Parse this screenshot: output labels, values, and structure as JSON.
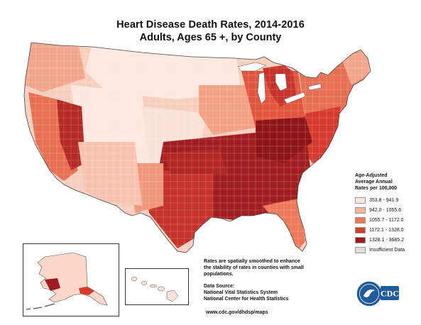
{
  "map": {
    "title": "Heart Disease Death Rates, 2014-2016",
    "subtitle": "Adults, Ages 65 +, by County",
    "colors": {
      "class1": "#fde7df",
      "class2": "#f6b39c",
      "class3": "#ee7859",
      "class4": "#d83a2c",
      "class5": "#9d1b1f",
      "insufficient": "#dddddd",
      "border": "#444444"
    }
  },
  "legend": {
    "title_lines": [
      "Age-Adjusted",
      "Average Annual",
      "Rates per 100,000"
    ],
    "items": [
      {
        "label": "353.8 - 941.9",
        "color": "#fde7df"
      },
      {
        "label": "942.0 - 1055.6",
        "color": "#f6b39c"
      },
      {
        "label": "1055.7 - 1172.0",
        "color": "#ee7859"
      },
      {
        "label": "1172.1 - 1328.0",
        "color": "#d83a2c"
      },
      {
        "label": "1328.1 - 3685.2",
        "color": "#9d1b1f"
      },
      {
        "label": "Insufficient Data",
        "color": "#dddddd"
      }
    ]
  },
  "notes": {
    "smoothing_lines": [
      "Rates are spatially smoothed to enhance",
      "the stability of rates in counties with small",
      "populations."
    ],
    "source_title": "Data Source:",
    "source_lines": [
      "National Vital Statistics System",
      "National Center for Health Statistics"
    ],
    "website": "www.cdc.gov/dhdsp/maps"
  },
  "logo": {
    "text": "CDC"
  }
}
